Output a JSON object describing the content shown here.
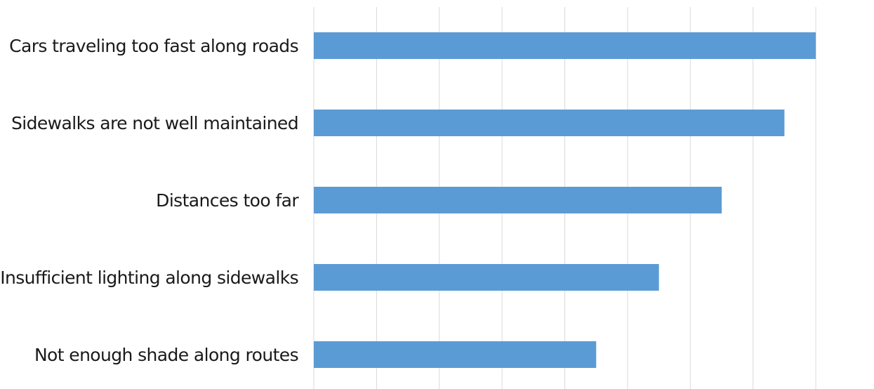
{
  "chart_data": {
    "type": "bar",
    "orientation": "horizontal",
    "categories": [
      "Cars traveling too fast along roads",
      "Sidewalks are not well maintained",
      "Distances too far",
      "Insufficient lighting along sidewalks",
      "Not enough shade along routes"
    ],
    "values": [
      8,
      7.5,
      6.5,
      5.5,
      4.5
    ],
    "xlim": [
      0,
      9
    ],
    "grid": true,
    "color": "#5b9bd5",
    "title": "",
    "xlabel": "",
    "ylabel": ""
  }
}
